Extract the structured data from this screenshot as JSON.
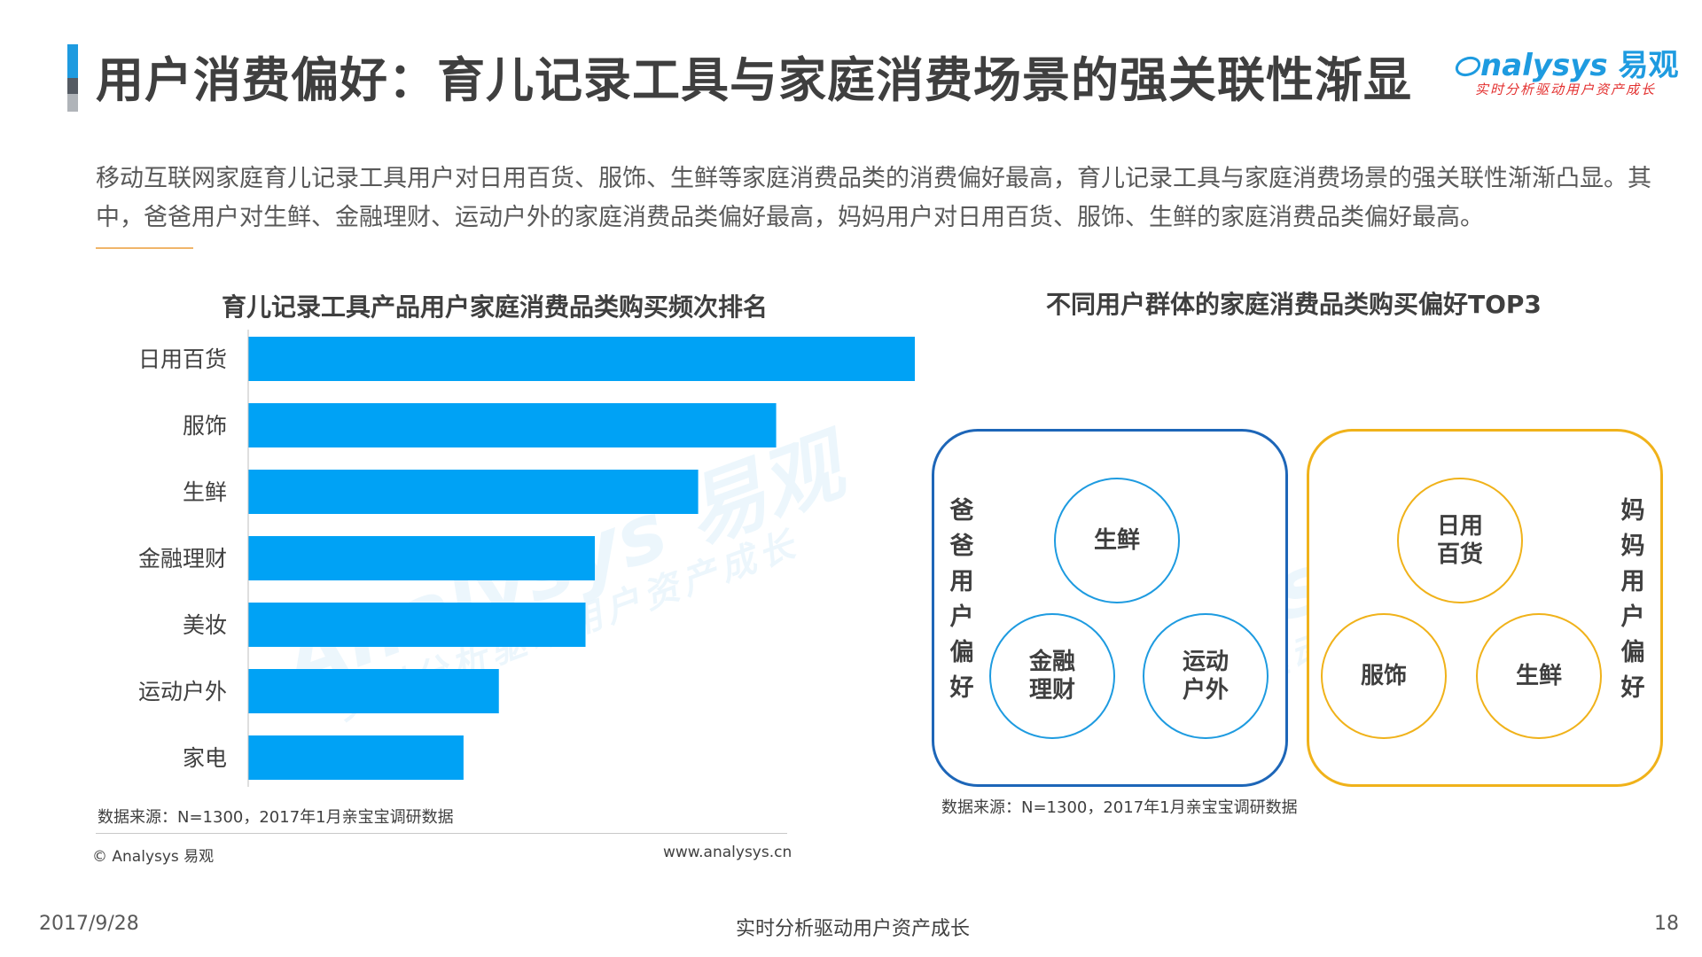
{
  "header": {
    "title": "用户消费偏好：育儿记录工具与家庭消费场景的强关联性渐显",
    "logo_word": "nalysys",
    "logo_cn": "易观",
    "logo_tagline": "实时分析驱动用户资产成长"
  },
  "summary": {
    "text": "移动互联网家庭育儿记录工具用户对日用百货、服饰、生鲜等家庭消费品类的消费偏好最高，育儿记录工具与家庭消费场景的强关联性渐渐凸显。其中，爸爸用户对生鲜、金融理财、运动户外的家庭消费品类偏好最高，妈妈用户对日用百货、服饰、生鲜的家庭消费品类偏好最高。"
  },
  "chart_data": [
    {
      "type": "bar",
      "orientation": "horizontal",
      "title": "育儿记录工具产品用户家庭消费品类购买频次排名",
      "categories": [
        "日用百货",
        "服饰",
        "生鲜",
        "金融理财",
        "美妆",
        "运动户外",
        "家电"
      ],
      "values": [
        100,
        79.2,
        67.5,
        52,
        50.6,
        37.6,
        32.3
      ],
      "value_axis_shown": false,
      "grid": false,
      "color": "#00a2f5"
    },
    {
      "type": "table",
      "title": "不同用户群体的家庭消费品类购买偏好TOP3",
      "groups": [
        {
          "name": "爸爸用户偏好",
          "items": [
            "生鲜",
            "金融理财",
            "运动户外"
          ],
          "color": "#1d66b8"
        },
        {
          "name": "妈妈用户偏好",
          "items": [
            "日用百货",
            "服饰",
            "生鲜"
          ],
          "color": "#f0b21a"
        }
      ]
    }
  ],
  "source_left": "数据来源：N=1300，2017年1月亲宝宝调研数据",
  "source_right": "数据来源：N=1300，2017年1月亲宝宝调研数据",
  "footer": {
    "copyright": "© Analysys 易观",
    "website": "www.analysys.cn",
    "date": "2017/9/28",
    "tagline": "实时分析驱动用户资产成长",
    "page": "18"
  },
  "watermark": {
    "word": "Analysys 易观",
    "tagline": "实时分析驱动用户资产成长"
  },
  "colors": {
    "accent_blue": "#1e9be0",
    "bar_blue": "#00a2f5",
    "dad_frame": "#1d66b8",
    "mom_frame": "#f0b21a"
  }
}
